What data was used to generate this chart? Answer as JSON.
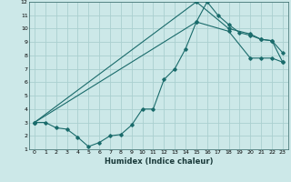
{
  "xlabel": "Humidex (Indice chaleur)",
  "xlim": [
    -0.5,
    23.5
  ],
  "ylim": [
    1,
    12
  ],
  "xticks": [
    0,
    1,
    2,
    3,
    4,
    5,
    6,
    7,
    8,
    9,
    10,
    11,
    12,
    13,
    14,
    15,
    16,
    17,
    18,
    19,
    20,
    21,
    22,
    23
  ],
  "yticks": [
    1,
    2,
    3,
    4,
    5,
    6,
    7,
    8,
    9,
    10,
    11,
    12
  ],
  "bg_color": "#cce8e8",
  "grid_color": "#aacfcf",
  "line_color": "#1a6b6b",
  "line1_x": [
    0,
    1,
    2,
    3,
    4,
    5,
    6,
    7,
    8,
    9,
    10,
    11,
    12,
    13,
    14,
    15,
    16,
    17,
    18,
    19,
    20,
    21,
    22,
    23
  ],
  "line1_y": [
    3.0,
    3.0,
    2.6,
    2.5,
    1.9,
    1.2,
    1.5,
    2.0,
    2.1,
    2.8,
    4.0,
    4.0,
    6.2,
    7.0,
    8.5,
    10.5,
    12.0,
    11.0,
    10.3,
    9.7,
    9.5,
    9.2,
    9.1,
    8.2
  ],
  "line2_x": [
    0,
    15,
    18,
    20,
    21,
    22,
    23
  ],
  "line2_y": [
    3.0,
    12.0,
    10.0,
    9.6,
    9.2,
    9.1,
    7.5
  ],
  "line3_x": [
    0,
    15,
    18,
    20,
    21,
    22,
    23
  ],
  "line3_y": [
    3.0,
    10.5,
    9.8,
    7.8,
    7.8,
    7.8,
    7.5
  ]
}
